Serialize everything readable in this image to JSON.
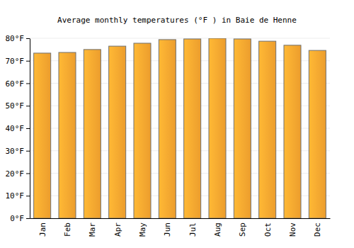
{
  "chart_data": {
    "type": "bar",
    "title": "Average monthly temperatures (°F ) in Baie de Henne",
    "categories": [
      "Jan",
      "Feb",
      "Mar",
      "Apr",
      "May",
      "Jun",
      "Jul",
      "Aug",
      "Sep",
      "Oct",
      "Nov",
      "Dec"
    ],
    "values": [
      73.4,
      73.7,
      75.0,
      76.5,
      77.8,
      79.4,
      79.7,
      80.0,
      79.7,
      78.7,
      76.9,
      74.6
    ],
    "color": "#f9a630",
    "ylim": [
      0,
      80
    ],
    "yticks": [
      {
        "value": 0,
        "label": "0°F"
      },
      {
        "value": 10,
        "label": "10°F"
      },
      {
        "value": 20,
        "label": "20°F"
      },
      {
        "value": 30,
        "label": "30°F"
      },
      {
        "value": 40,
        "label": "40°F"
      },
      {
        "value": 50,
        "label": "50°F"
      },
      {
        "value": 60,
        "label": "60°F"
      },
      {
        "value": 70,
        "label": "70°F"
      },
      {
        "value": 80,
        "label": "80°F"
      }
    ],
    "grid": true
  }
}
